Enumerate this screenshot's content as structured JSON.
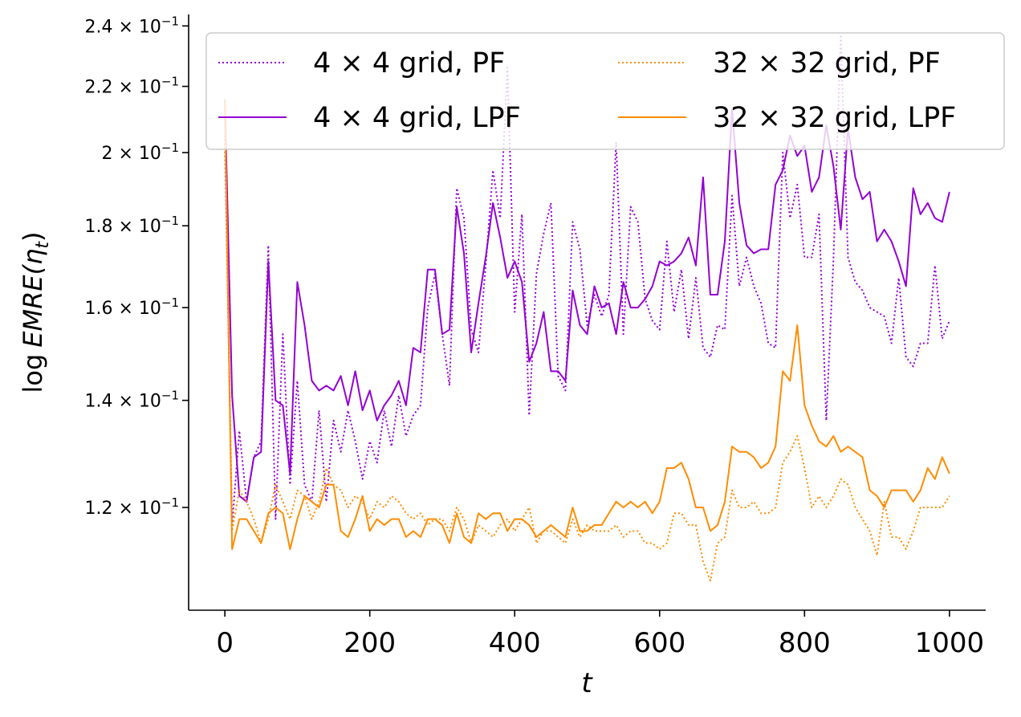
{
  "chart_data": {
    "type": "line",
    "title": "",
    "xlabel": "t",
    "ylabel_prefix": "log",
    "ylabel_main": "EMRE(η",
    "ylabel_sub": "t",
    "ylabel_suffix": ")",
    "yscale": "log",
    "xlim": [
      -50,
      1050
    ],
    "ylim": [
      0.1035,
      0.244
    ],
    "xticks": [
      0,
      200,
      400,
      600,
      800,
      1000
    ],
    "xtick_labels": [
      "0",
      "200",
      "400",
      "600",
      "800",
      "1000"
    ],
    "yticks": [
      0.12,
      0.14,
      0.16,
      0.18,
      0.2,
      0.22,
      0.24
    ],
    "ytick_mantissas": [
      "1.2",
      "1.4",
      "1.6",
      "1.8",
      "2",
      "2.2",
      "2.4"
    ],
    "ytick_times": "×",
    "ytick_base": "10",
    "ytick_exp": "−1",
    "legend_position": "top",
    "x": [
      0,
      10,
      20,
      30,
      40,
      50,
      60,
      70,
      80,
      90,
      100,
      110,
      120,
      130,
      140,
      150,
      160,
      170,
      180,
      190,
      200,
      210,
      220,
      230,
      240,
      250,
      260,
      270,
      280,
      290,
      300,
      310,
      320,
      330,
      340,
      350,
      360,
      370,
      380,
      390,
      400,
      410,
      420,
      430,
      440,
      450,
      460,
      470,
      480,
      490,
      500,
      510,
      520,
      530,
      540,
      550,
      560,
      570,
      580,
      590,
      600,
      610,
      620,
      630,
      640,
      650,
      660,
      670,
      680,
      690,
      700,
      710,
      720,
      730,
      740,
      750,
      760,
      770,
      780,
      790,
      800,
      810,
      820,
      830,
      840,
      850,
      860,
      870,
      880,
      890,
      900,
      910,
      920,
      930,
      940,
      950,
      960,
      970,
      980,
      990,
      1000
    ],
    "series": [
      {
        "name": "4 × 4 grid, PF",
        "label_pre": "4",
        "label_mid": "4",
        "label_post": " grid, PF",
        "color": "#9400d3",
        "style": "dotted",
        "values": [
          0.205,
          0.117,
          0.134,
          0.121,
          0.129,
          0.132,
          0.175,
          0.118,
          0.154,
          0.124,
          0.144,
          0.124,
          0.121,
          0.138,
          0.121,
          0.136,
          0.13,
          0.138,
          0.132,
          0.125,
          0.132,
          0.128,
          0.138,
          0.131,
          0.141,
          0.133,
          0.137,
          0.139,
          0.16,
          0.168,
          0.154,
          0.143,
          0.19,
          0.182,
          0.155,
          0.15,
          0.17,
          0.195,
          0.182,
          0.226,
          0.159,
          0.183,
          0.137,
          0.168,
          0.178,
          0.186,
          0.145,
          0.142,
          0.181,
          0.174,
          0.156,
          0.163,
          0.158,
          0.163,
          0.203,
          0.154,
          0.185,
          0.181,
          0.162,
          0.157,
          0.155,
          0.176,
          0.159,
          0.169,
          0.153,
          0.167,
          0.151,
          0.149,
          0.156,
          0.155,
          0.188,
          0.165,
          0.172,
          0.165,
          0.161,
          0.152,
          0.151,
          0.2,
          0.182,
          0.191,
          0.172,
          0.172,
          0.183,
          0.136,
          0.172,
          0.237,
          0.172,
          0.166,
          0.164,
          0.16,
          0.159,
          0.158,
          0.152,
          0.167,
          0.149,
          0.147,
          0.152,
          0.152,
          0.17,
          0.153,
          0.157
        ]
      },
      {
        "name": "4 × 4 grid, LPF",
        "label_pre": "4",
        "label_mid": "4",
        "label_post": " grid, LPF",
        "color": "#9400d3",
        "style": "solid",
        "values": [
          0.216,
          0.141,
          0.122,
          0.121,
          0.129,
          0.13,
          0.171,
          0.14,
          0.139,
          0.126,
          0.166,
          0.156,
          0.144,
          0.142,
          0.143,
          0.142,
          0.145,
          0.139,
          0.146,
          0.138,
          0.142,
          0.136,
          0.139,
          0.141,
          0.144,
          0.139,
          0.151,
          0.15,
          0.169,
          0.169,
          0.154,
          0.155,
          0.185,
          0.173,
          0.15,
          0.161,
          0.172,
          0.186,
          0.177,
          0.167,
          0.171,
          0.166,
          0.148,
          0.152,
          0.159,
          0.146,
          0.146,
          0.144,
          0.164,
          0.156,
          0.154,
          0.165,
          0.16,
          0.161,
          0.154,
          0.166,
          0.16,
          0.16,
          0.162,
          0.165,
          0.171,
          0.17,
          0.171,
          0.173,
          0.177,
          0.17,
          0.193,
          0.163,
          0.163,
          0.176,
          0.213,
          0.186,
          0.175,
          0.173,
          0.174,
          0.174,
          0.191,
          0.195,
          0.205,
          0.199,
          0.202,
          0.189,
          0.193,
          0.208,
          0.196,
          0.179,
          0.207,
          0.193,
          0.187,
          0.189,
          0.176,
          0.179,
          0.176,
          0.171,
          0.165,
          0.19,
          0.183,
          0.186,
          0.182,
          0.181,
          0.189
        ]
      },
      {
        "name": "32 × 32 grid, PF",
        "label_pre": "32",
        "label_mid": "32",
        "label_post": " grid, PF",
        "color": "#ff8c00",
        "style": "dotted",
        "values": [
          0.21,
          0.116,
          0.123,
          0.121,
          0.118,
          0.114,
          0.118,
          0.124,
          0.121,
          0.118,
          0.123,
          0.122,
          0.118,
          0.121,
          0.127,
          0.124,
          0.123,
          0.12,
          0.122,
          0.121,
          0.118,
          0.121,
          0.12,
          0.122,
          0.121,
          0.119,
          0.118,
          0.119,
          0.117,
          0.118,
          0.118,
          0.116,
          0.12,
          0.118,
          0.114,
          0.117,
          0.116,
          0.115,
          0.117,
          0.118,
          0.116,
          0.118,
          0.12,
          0.114,
          0.116,
          0.116,
          0.115,
          0.114,
          0.118,
          0.115,
          0.117,
          0.116,
          0.116,
          0.116,
          0.117,
          0.115,
          0.116,
          0.116,
          0.114,
          0.114,
          0.113,
          0.114,
          0.119,
          0.119,
          0.117,
          0.117,
          0.111,
          0.108,
          0.114,
          0.115,
          0.123,
          0.12,
          0.12,
          0.121,
          0.119,
          0.119,
          0.12,
          0.128,
          0.13,
          0.133,
          0.127,
          0.12,
          0.122,
          0.12,
          0.122,
          0.125,
          0.124,
          0.12,
          0.118,
          0.116,
          0.112,
          0.121,
          0.115,
          0.115,
          0.113,
          0.116,
          0.12,
          0.12,
          0.12,
          0.12,
          0.122
        ]
      },
      {
        "name": "32 × 32 grid, LPF",
        "label_pre": "32",
        "label_mid": "32",
        "label_post": " grid, LPF",
        "color": "#ff8c00",
        "style": "solid",
        "values": [
          0.216,
          0.113,
          0.118,
          0.118,
          0.116,
          0.114,
          0.119,
          0.12,
          0.119,
          0.113,
          0.118,
          0.122,
          0.121,
          0.12,
          0.124,
          0.124,
          0.116,
          0.115,
          0.118,
          0.122,
          0.116,
          0.118,
          0.117,
          0.118,
          0.118,
          0.115,
          0.116,
          0.115,
          0.118,
          0.118,
          0.117,
          0.114,
          0.119,
          0.115,
          0.114,
          0.119,
          0.118,
          0.119,
          0.119,
          0.116,
          0.118,
          0.118,
          0.117,
          0.115,
          0.116,
          0.117,
          0.116,
          0.115,
          0.12,
          0.116,
          0.116,
          0.117,
          0.117,
          0.119,
          0.121,
          0.12,
          0.121,
          0.12,
          0.121,
          0.119,
          0.121,
          0.127,
          0.127,
          0.128,
          0.125,
          0.12,
          0.12,
          0.116,
          0.117,
          0.121,
          0.131,
          0.13,
          0.13,
          0.129,
          0.127,
          0.128,
          0.131,
          0.146,
          0.144,
          0.156,
          0.139,
          0.135,
          0.132,
          0.131,
          0.133,
          0.13,
          0.131,
          0.13,
          0.129,
          0.123,
          0.122,
          0.12,
          0.123,
          0.123,
          0.123,
          0.121,
          0.123,
          0.127,
          0.125,
          0.129,
          0.126
        ]
      }
    ]
  }
}
